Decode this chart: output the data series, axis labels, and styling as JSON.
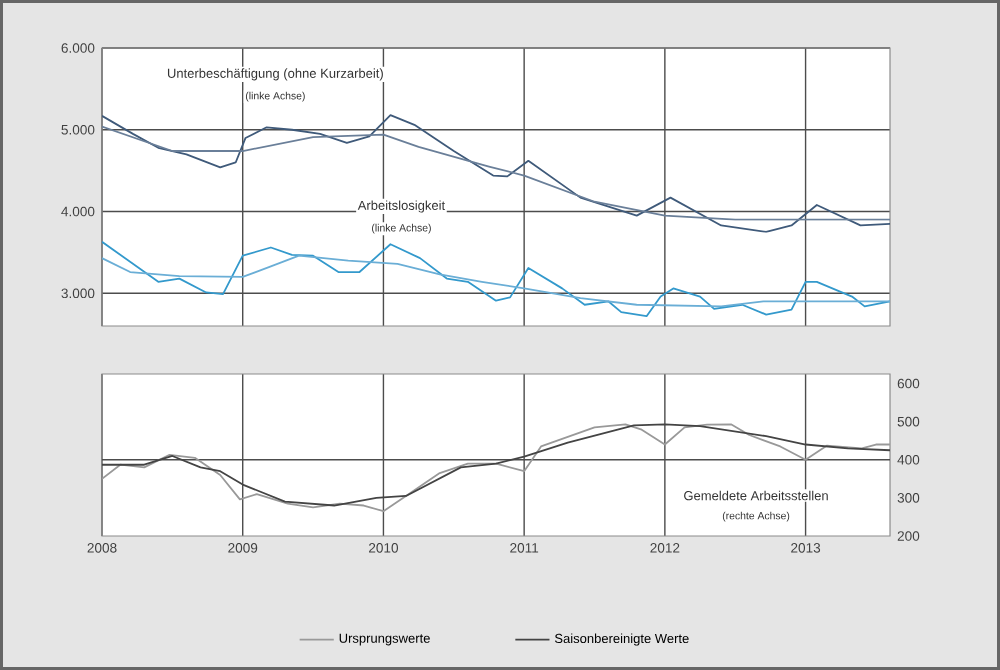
{
  "chart_data": [
    {
      "type": "line",
      "xlim": [
        2008,
        2013.6
      ],
      "xticks": [
        2008,
        2009,
        2010,
        2011,
        2012,
        2013
      ],
      "ylim": [
        2600,
        6000
      ],
      "yticks": [
        {
          "value": 3000,
          "label": "3.000"
        },
        {
          "value": 4000,
          "label": "4.000"
        },
        {
          "value": 5000,
          "label": "5.000"
        },
        {
          "value": 6000,
          "label": "6.000"
        }
      ],
      "tick_labels": "y",
      "grid": true,
      "annotations": [
        "Unterbeschäftigung (ohne Kurzarbeit)",
        "(linke Achse)",
        "Arbeitslosigkeit",
        "(linke Achse)"
      ],
      "series": [
        {
          "color": "#3f5a7a",
          "x": [
            2008.0,
            2008.22,
            2008.4,
            2008.6,
            2008.84,
            2008.95,
            2009.02,
            2009.17,
            2009.35,
            2009.55,
            2009.74,
            2009.9,
            2010.05,
            2010.22,
            2010.5,
            2010.78,
            2010.88,
            2011.03,
            2011.4,
            2011.8,
            2012.04,
            2012.4,
            2012.72,
            2012.9,
            2013.08,
            2013.39,
            2013.6
          ],
          "values": [
            5170,
            4950,
            4780,
            4700,
            4540,
            4600,
            4900,
            5030,
            5000,
            4950,
            4840,
            4920,
            5180,
            5060,
            4740,
            4440,
            4430,
            4620,
            4170,
            3950,
            4170,
            3830,
            3750,
            3830,
            4080,
            3830,
            3850
          ]
        },
        {
          "color": "#6a7f99",
          "x": [
            2008.0,
            2008.5,
            2009.0,
            2009.5,
            2010.0,
            2010.25,
            2010.5,
            2010.75,
            2011.0,
            2011.5,
            2012.0,
            2012.5,
            2013.0,
            2013.6
          ],
          "values": [
            5040,
            4740,
            4740,
            4910,
            4940,
            4790,
            4670,
            4550,
            4440,
            4120,
            3950,
            3900,
            3900,
            3900
          ]
        },
        {
          "color": "#3399cc",
          "x": [
            2008.0,
            2008.4,
            2008.55,
            2008.74,
            2008.86,
            2009.0,
            2009.2,
            2009.35,
            2009.5,
            2009.68,
            2009.83,
            2010.05,
            2010.26,
            2010.45,
            2010.6,
            2010.8,
            2010.9,
            2011.03,
            2011.27,
            2011.43,
            2011.6,
            2011.69,
            2011.87,
            2011.97,
            2012.06,
            2012.25,
            2012.35,
            2012.55,
            2012.72,
            2012.9,
            2013.0,
            2013.08,
            2013.33,
            2013.42,
            2013.6
          ],
          "values": [
            3630,
            3140,
            3180,
            3010,
            2990,
            3460,
            3560,
            3470,
            3460,
            3260,
            3260,
            3600,
            3430,
            3180,
            3140,
            2910,
            2950,
            3310,
            3060,
            2860,
            2900,
            2770,
            2720,
            2960,
            3060,
            2960,
            2810,
            2860,
            2740,
            2800,
            3140,
            3140,
            2960,
            2840,
            2900
          ]
        },
        {
          "color": "#6aaed6",
          "x": [
            2008.0,
            2008.2,
            2008.55,
            2009.0,
            2009.2,
            2009.4,
            2009.75,
            2010.1,
            2010.4,
            2010.7,
            2011.0,
            2011.4,
            2011.8,
            2012.4,
            2012.7,
            2013.0,
            2013.6
          ],
          "values": [
            3430,
            3260,
            3210,
            3200,
            3330,
            3460,
            3400,
            3360,
            3230,
            3140,
            3060,
            2940,
            2860,
            2840,
            2900,
            2900,
            2900
          ]
        }
      ]
    },
    {
      "type": "line",
      "xlim": [
        2008,
        2013.6
      ],
      "xticks": [
        2008,
        2009,
        2010,
        2011,
        2012,
        2013
      ],
      "y2lim": [
        200,
        625
      ],
      "y2ticks": [
        200,
        300,
        400,
        500,
        600
      ],
      "grid": "x",
      "legend": "bottom",
      "ref_lines": [
        {
          "axis": "y2",
          "value": 400
        }
      ],
      "annotations": [
        "Gemeldete Arbeitsstellen",
        "(rechte Achse)"
      ],
      "series": [
        {
          "name": "Ursprungswerte",
          "color": "#999999",
          "axis": "y2",
          "x": [
            2008.0,
            2008.13,
            2008.3,
            2008.48,
            2008.66,
            2008.84,
            2008.98,
            2009.1,
            2009.32,
            2009.5,
            2009.69,
            2009.86,
            2010.0,
            2010.16,
            2010.4,
            2010.6,
            2010.8,
            2011.0,
            2011.12,
            2011.31,
            2011.5,
            2011.72,
            2011.83,
            2012.0,
            2012.14,
            2012.3,
            2012.47,
            2012.6,
            2012.82,
            2013.0,
            2013.15,
            2013.4,
            2013.5,
            2013.6
          ],
          "values": [
            350,
            387,
            380,
            413,
            405,
            360,
            296,
            310,
            285,
            275,
            285,
            280,
            265,
            305,
            365,
            390,
            390,
            370,
            435,
            460,
            485,
            493,
            480,
            440,
            485,
            492,
            493,
            465,
            435,
            400,
            437,
            430,
            440,
            440
          ]
        },
        {
          "name": "Saisonbereinigte Werte",
          "color": "#444444",
          "axis": "y2",
          "x": [
            2008.0,
            2008.3,
            2008.5,
            2008.7,
            2008.84,
            2009.0,
            2009.3,
            2009.65,
            2009.95,
            2010.16,
            2010.55,
            2010.8,
            2011.0,
            2011.31,
            2011.78,
            2012.0,
            2012.25,
            2012.72,
            2013.0,
            2013.3,
            2013.6
          ],
          "values": [
            387,
            387,
            410,
            380,
            370,
            335,
            290,
            280,
            300,
            305,
            380,
            390,
            408,
            445,
            490,
            493,
            488,
            462,
            440,
            430,
            425
          ]
        }
      ]
    }
  ]
}
